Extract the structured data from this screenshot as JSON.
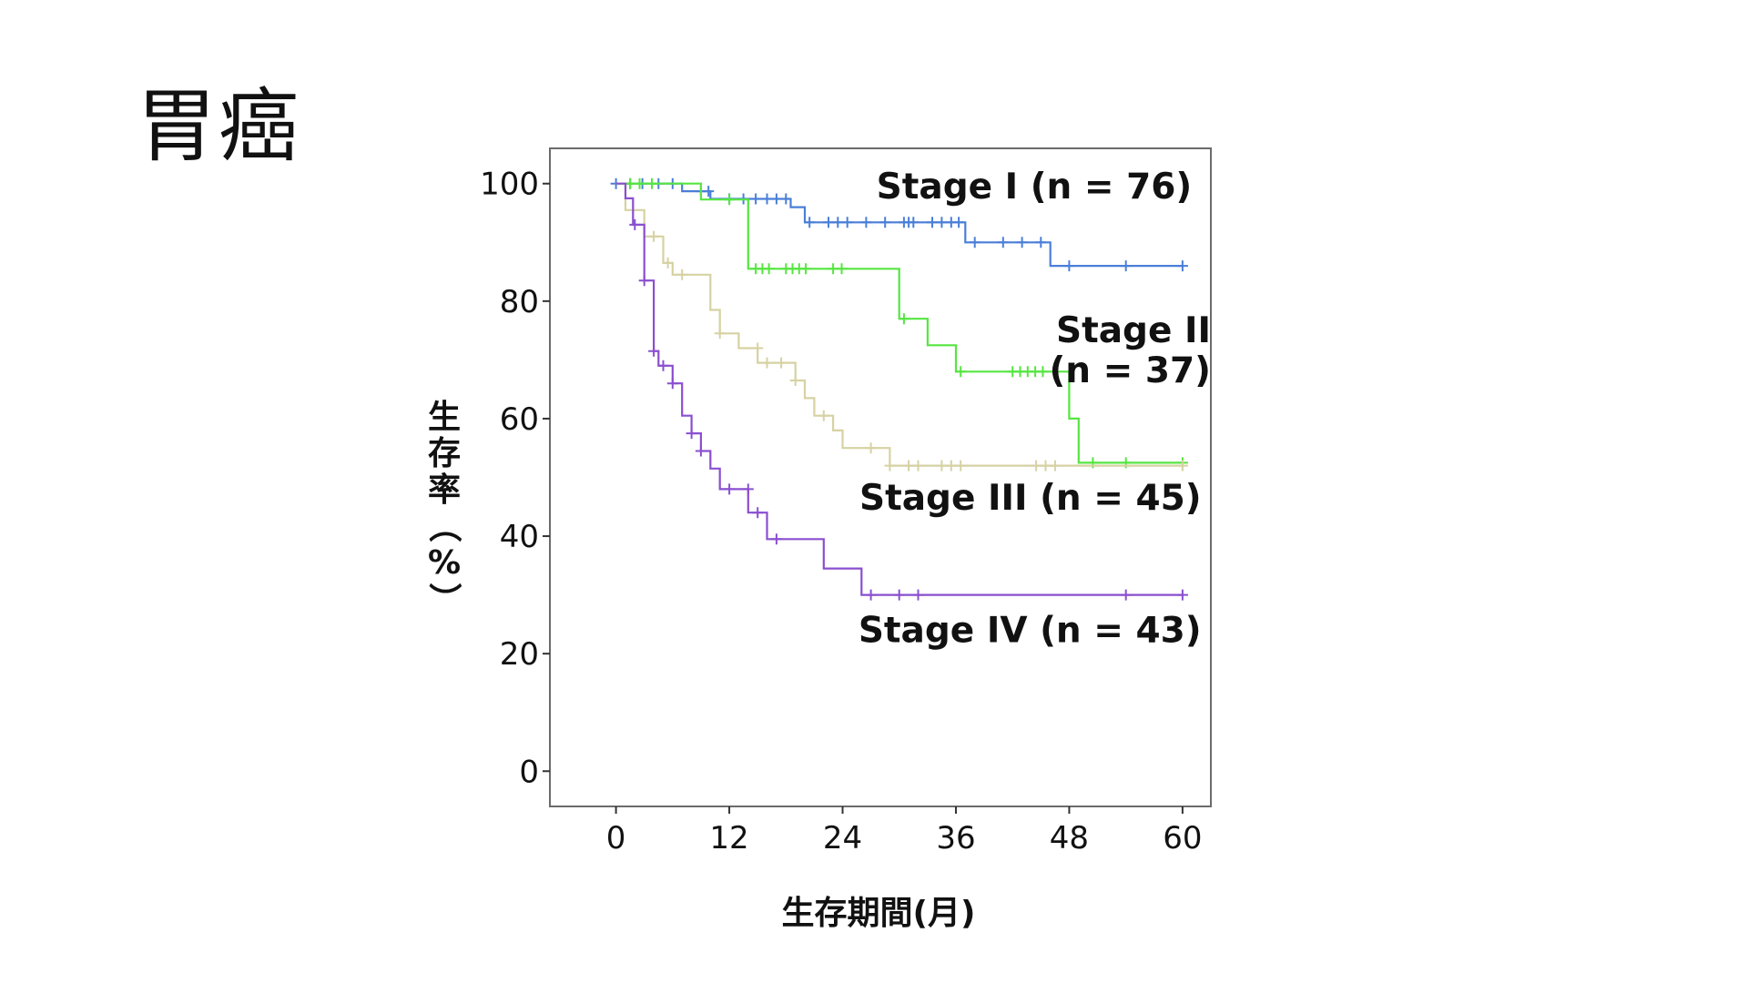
{
  "slide": {
    "title": "胃癌"
  },
  "chart_data": {
    "type": "line",
    "subtype": "kaplan-meier",
    "xlabel": "生存期間(月)",
    "ylabel_chars": [
      "生",
      "存",
      "率",
      "（",
      "%",
      "）"
    ],
    "xlim": [
      -7,
      63
    ],
    "ylim": [
      -6,
      106
    ],
    "xticks": [
      0,
      12,
      24,
      36,
      48,
      60
    ],
    "yticks": [
      0,
      20,
      40,
      60,
      80,
      100
    ],
    "grid": false,
    "series": [
      {
        "label": "Stage I (n = 76)",
        "color": "#4a7fd8",
        "steps": [
          [
            0,
            100
          ],
          [
            7,
            100
          ],
          [
            7,
            98.7
          ],
          [
            10,
            98.7
          ],
          [
            10,
            97.4
          ],
          [
            18.5,
            97.4
          ],
          [
            18.5,
            96
          ],
          [
            20,
            96
          ],
          [
            20,
            93.4
          ],
          [
            37,
            93.4
          ],
          [
            37,
            90
          ],
          [
            46,
            90
          ],
          [
            46,
            86
          ],
          [
            60,
            86
          ]
        ],
        "censors": [
          [
            0,
            100
          ],
          [
            1.5,
            100
          ],
          [
            2.8,
            100
          ],
          [
            4.5,
            100
          ],
          [
            6,
            100
          ],
          [
            9,
            98.7
          ],
          [
            9.8,
            98.7
          ],
          [
            12,
            97.4
          ],
          [
            13.5,
            97.4
          ],
          [
            14.8,
            97.4
          ],
          [
            16,
            97.4
          ],
          [
            17,
            97.4
          ],
          [
            18,
            97.4
          ],
          [
            20.5,
            93.4
          ],
          [
            22.5,
            93.4
          ],
          [
            23.5,
            93.4
          ],
          [
            24.5,
            93.4
          ],
          [
            26.5,
            93.4
          ],
          [
            28.5,
            93.4
          ],
          [
            30.5,
            93.4
          ],
          [
            31,
            93.4
          ],
          [
            31.5,
            93.4
          ],
          [
            33.5,
            93.4
          ],
          [
            34.5,
            93.4
          ],
          [
            35.5,
            93.4
          ],
          [
            36.3,
            93.4
          ],
          [
            38,
            90
          ],
          [
            41,
            90
          ],
          [
            43,
            90
          ],
          [
            45,
            90
          ],
          [
            48,
            86
          ],
          [
            54,
            86
          ],
          [
            60,
            86
          ]
        ]
      },
      {
        "label": "Stage II (n = 37)",
        "color": "#55e640",
        "steps": [
          [
            0,
            100
          ],
          [
            9,
            100
          ],
          [
            9,
            97.3
          ],
          [
            14,
            97.3
          ],
          [
            14,
            85.5
          ],
          [
            30,
            85.5
          ],
          [
            30,
            77
          ],
          [
            33,
            77
          ],
          [
            33,
            72.5
          ],
          [
            36,
            72.5
          ],
          [
            36,
            68
          ],
          [
            48,
            68
          ],
          [
            48,
            60
          ],
          [
            49,
            60
          ],
          [
            49,
            52.5
          ],
          [
            60,
            52.5
          ]
        ],
        "censors": [
          [
            1.5,
            100
          ],
          [
            2.5,
            100
          ],
          [
            3.8,
            100
          ],
          [
            12,
            97.3
          ],
          [
            14.8,
            85.5
          ],
          [
            15.5,
            85.5
          ],
          [
            16.2,
            85.5
          ],
          [
            18,
            85.5
          ],
          [
            18.7,
            85.5
          ],
          [
            19.4,
            85.5
          ],
          [
            20.1,
            85.5
          ],
          [
            23,
            85.5
          ],
          [
            23.9,
            85.5
          ],
          [
            30.5,
            77
          ],
          [
            36.5,
            68
          ],
          [
            42,
            68
          ],
          [
            42.8,
            68
          ],
          [
            43.6,
            68
          ],
          [
            44.4,
            68
          ],
          [
            45.2,
            68
          ],
          [
            50.5,
            52.5
          ],
          [
            54,
            52.5
          ],
          [
            60,
            52.5
          ]
        ]
      },
      {
        "label": "Stage III (n = 45)",
        "color": "#d6d2a3",
        "steps": [
          [
            0,
            100
          ],
          [
            1,
            100
          ],
          [
            1,
            95.5
          ],
          [
            3,
            95.5
          ],
          [
            3,
            91
          ],
          [
            5,
            91
          ],
          [
            5,
            86.5
          ],
          [
            6,
            86.5
          ],
          [
            6,
            84.5
          ],
          [
            10,
            84.5
          ],
          [
            10,
            78.5
          ],
          [
            11,
            78.5
          ],
          [
            11,
            74.5
          ],
          [
            13,
            74.5
          ],
          [
            13,
            72
          ],
          [
            15,
            72
          ],
          [
            15,
            69.5
          ],
          [
            19,
            69.5
          ],
          [
            19,
            66.5
          ],
          [
            20,
            66.5
          ],
          [
            20,
            63.5
          ],
          [
            21,
            63.5
          ],
          [
            21,
            60.5
          ],
          [
            23,
            60.5
          ],
          [
            23,
            58
          ],
          [
            24,
            58
          ],
          [
            24,
            55
          ],
          [
            29,
            55
          ],
          [
            29,
            52
          ],
          [
            60,
            52
          ]
        ],
        "censors": [
          [
            4,
            91
          ],
          [
            5.5,
            86.5
          ],
          [
            7,
            84.5
          ],
          [
            11,
            74.5
          ],
          [
            15,
            72
          ],
          [
            16,
            69.5
          ],
          [
            17.5,
            69.5
          ],
          [
            19,
            66.5
          ],
          [
            22,
            60.5
          ],
          [
            27,
            55
          ],
          [
            29,
            52
          ],
          [
            31,
            52
          ],
          [
            32,
            52
          ],
          [
            34.5,
            52
          ],
          [
            35.5,
            52
          ],
          [
            36.5,
            52
          ],
          [
            44.5,
            52
          ],
          [
            45.5,
            52
          ],
          [
            46.5,
            52
          ],
          [
            60,
            52
          ]
        ]
      },
      {
        "label": "Stage IV (n = 43)",
        "color": "#8a4fd0",
        "steps": [
          [
            0,
            100
          ],
          [
            1,
            100
          ],
          [
            1,
            97.5
          ],
          [
            1.8,
            97.5
          ],
          [
            1.8,
            93
          ],
          [
            3,
            93
          ],
          [
            3,
            83.5
          ],
          [
            4,
            83.5
          ],
          [
            4,
            71.5
          ],
          [
            4.5,
            71.5
          ],
          [
            4.5,
            69
          ],
          [
            6,
            69
          ],
          [
            6,
            66
          ],
          [
            7,
            66
          ],
          [
            7,
            60.5
          ],
          [
            8,
            60.5
          ],
          [
            8,
            57.5
          ],
          [
            9,
            57.5
          ],
          [
            9,
            54.5
          ],
          [
            10,
            54.5
          ],
          [
            10,
            51.5
          ],
          [
            11,
            51.5
          ],
          [
            11,
            48
          ],
          [
            14,
            48
          ],
          [
            14,
            44
          ],
          [
            16,
            44
          ],
          [
            16,
            39.5
          ],
          [
            22,
            39.5
          ],
          [
            22,
            34.5
          ],
          [
            26,
            34.5
          ],
          [
            26,
            30
          ],
          [
            60,
            30
          ]
        ],
        "censors": [
          [
            2,
            93
          ],
          [
            3,
            83.5
          ],
          [
            4,
            71.5
          ],
          [
            5,
            69
          ],
          [
            6,
            66
          ],
          [
            8,
            57.5
          ],
          [
            9,
            54.5
          ],
          [
            12,
            48
          ],
          [
            14,
            48
          ],
          [
            15,
            44
          ],
          [
            17,
            39.5
          ],
          [
            27,
            30
          ],
          [
            30,
            30
          ],
          [
            32,
            30
          ],
          [
            54,
            30
          ],
          [
            60,
            30
          ]
        ]
      }
    ],
    "annotations": [
      {
        "text": "Stage I (n = 76)",
        "lines": [
          "Stage I (n = 76)"
        ],
        "x": 61,
        "y": 97.5,
        "anchor": "end"
      },
      {
        "text": "Stage II (n = 37)",
        "lines": [
          "Stage II",
          "(n = 37)"
        ],
        "x": 63,
        "y": 73,
        "anchor": "end"
      },
      {
        "text": "Stage III (n = 45)",
        "lines": [
          "Stage III (n = 45)"
        ],
        "x": 62,
        "y": 44.5,
        "anchor": "end"
      },
      {
        "text": "Stage IV (n = 43)",
        "lines": [
          "Stage IV (n = 43)"
        ],
        "x": 62,
        "y": 22,
        "anchor": "end"
      }
    ]
  }
}
